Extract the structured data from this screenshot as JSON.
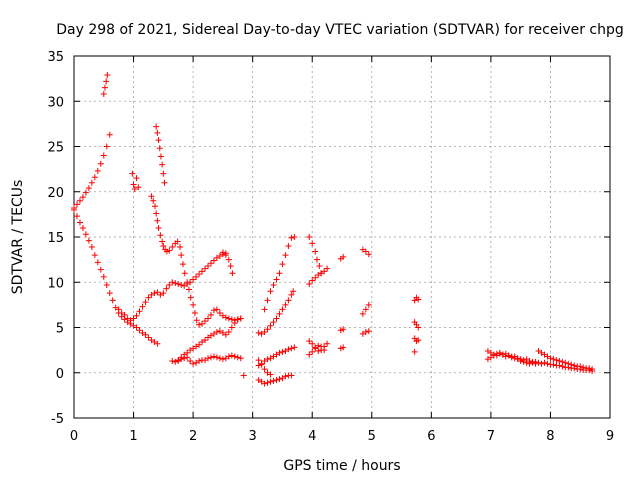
{
  "chart_data": {
    "type": "scatter",
    "title": "Day 298 of 2021, Sidereal Day-to-day VTEC variation (SDTVAR) for receiver chpg",
    "xlabel": "GPS time / hours",
    "ylabel": "SDTVAR / TECUs",
    "xlim": [
      0,
      9
    ],
    "ylim": [
      -5,
      35
    ],
    "xticks": [
      0,
      1,
      2,
      3,
      4,
      5,
      6,
      7,
      8,
      9
    ],
    "yticks": [
      -5,
      0,
      5,
      10,
      15,
      20,
      25,
      30,
      35
    ],
    "grid": true,
    "marker": "+",
    "color": "#ff0000",
    "segments": [
      [
        [
          0.0,
          18.2
        ],
        [
          0.05,
          18.6
        ],
        [
          0.1,
          19.0
        ],
        [
          0.15,
          19.4
        ],
        [
          0.2,
          19.9
        ],
        [
          0.25,
          20.4
        ],
        [
          0.3,
          21.0
        ],
        [
          0.35,
          21.6
        ],
        [
          0.4,
          22.3
        ],
        [
          0.45,
          23.1
        ],
        [
          0.5,
          24.0
        ],
        [
          0.55,
          25.0
        ],
        [
          0.6,
          26.3
        ]
      ],
      [
        [
          0.0,
          18.0
        ],
        [
          0.05,
          17.3
        ],
        [
          0.1,
          16.6
        ],
        [
          0.15,
          16.0
        ],
        [
          0.2,
          15.3
        ],
        [
          0.25,
          14.6
        ],
        [
          0.3,
          13.9
        ],
        [
          0.35,
          13.0
        ],
        [
          0.4,
          12.2
        ],
        [
          0.45,
          11.4
        ],
        [
          0.5,
          10.6
        ],
        [
          0.55,
          9.7
        ],
        [
          0.6,
          8.8
        ],
        [
          0.65,
          8.0
        ],
        [
          0.7,
          7.2
        ],
        [
          0.75,
          6.6
        ],
        [
          0.8,
          6.2
        ],
        [
          0.85,
          5.9
        ],
        [
          0.9,
          5.6
        ],
        [
          0.95,
          5.4
        ],
        [
          1.0,
          5.2
        ],
        [
          1.05,
          5.0
        ],
        [
          1.1,
          4.7
        ],
        [
          1.15,
          4.4
        ],
        [
          1.2,
          4.2
        ],
        [
          1.25,
          3.9
        ],
        [
          1.3,
          3.6
        ],
        [
          1.35,
          3.4
        ],
        [
          1.4,
          3.2
        ]
      ],
      [
        [
          0.5,
          30.8
        ],
        [
          0.52,
          31.5
        ],
        [
          0.54,
          32.2
        ],
        [
          0.56,
          32.9
        ]
      ],
      [
        [
          0.98,
          22.0
        ],
        [
          1.0,
          20.8
        ],
        [
          1.02,
          20.3
        ],
        [
          1.05,
          21.5
        ],
        [
          1.08,
          20.5
        ]
      ],
      [
        [
          0.75,
          7.0
        ],
        [
          0.8,
          6.6
        ],
        [
          0.85,
          6.4
        ],
        [
          0.9,
          6.0
        ],
        [
          0.95,
          5.8
        ],
        [
          1.0,
          6.0
        ],
        [
          1.05,
          6.3
        ],
        [
          1.1,
          6.8
        ],
        [
          1.15,
          7.3
        ],
        [
          1.2,
          7.8
        ],
        [
          1.25,
          8.3
        ],
        [
          1.3,
          8.6
        ],
        [
          1.35,
          8.8
        ],
        [
          1.4,
          8.9
        ],
        [
          1.45,
          8.6
        ],
        [
          1.5,
          8.8
        ],
        [
          1.55,
          9.3
        ],
        [
          1.6,
          9.7
        ],
        [
          1.65,
          10.0
        ],
        [
          1.7,
          9.9
        ],
        [
          1.75,
          9.8
        ],
        [
          1.8,
          9.7
        ],
        [
          1.85,
          9.6
        ],
        [
          1.9,
          9.8
        ],
        [
          1.95,
          10.0
        ],
        [
          2.0,
          10.3
        ],
        [
          2.05,
          10.6
        ],
        [
          2.1,
          10.9
        ],
        [
          2.15,
          11.2
        ],
        [
          2.2,
          11.5
        ],
        [
          2.25,
          11.8
        ],
        [
          2.3,
          12.1
        ],
        [
          2.35,
          12.4
        ],
        [
          2.4,
          12.7
        ],
        [
          2.45,
          12.9
        ],
        [
          2.5,
          13.1
        ],
        [
          2.55,
          13.2
        ]
      ],
      [
        [
          1.38,
          27.2
        ],
        [
          1.4,
          26.5
        ],
        [
          1.42,
          25.7
        ],
        [
          1.44,
          24.8
        ],
        [
          1.46,
          23.9
        ],
        [
          1.48,
          23.0
        ],
        [
          1.5,
          22.0
        ],
        [
          1.52,
          21.0
        ]
      ],
      [
        [
          1.3,
          19.5
        ],
        [
          1.33,
          19.0
        ],
        [
          1.36,
          18.4
        ],
        [
          1.38,
          17.6
        ],
        [
          1.4,
          16.8
        ],
        [
          1.42,
          16.0
        ],
        [
          1.45,
          15.2
        ],
        [
          1.48,
          14.5
        ],
        [
          1.5,
          14.0
        ],
        [
          1.53,
          13.6
        ],
        [
          1.56,
          13.4
        ],
        [
          1.6,
          13.5
        ],
        [
          1.65,
          13.9
        ],
        [
          1.7,
          14.3
        ],
        [
          1.74,
          14.5
        ],
        [
          1.78,
          13.9
        ],
        [
          1.8,
          13.0
        ],
        [
          1.83,
          12.0
        ],
        [
          1.86,
          11.0
        ],
        [
          1.9,
          10.0
        ],
        [
          1.93,
          9.2
        ],
        [
          1.96,
          8.3
        ],
        [
          2.0,
          7.5
        ],
        [
          2.03,
          6.6
        ],
        [
          2.06,
          5.8
        ],
        [
          2.1,
          5.3
        ],
        [
          2.15,
          5.4
        ],
        [
          2.2,
          5.7
        ],
        [
          2.25,
          6.0
        ],
        [
          2.3,
          6.4
        ],
        [
          2.35,
          6.9
        ],
        [
          2.4,
          7.0
        ],
        [
          2.45,
          6.6
        ],
        [
          2.5,
          6.3
        ],
        [
          2.55,
          6.1
        ],
        [
          2.6,
          6.0
        ],
        [
          2.65,
          5.9
        ],
        [
          2.7,
          5.8
        ],
        [
          2.75,
          5.9
        ],
        [
          2.8,
          6.0
        ]
      ],
      [
        [
          2.5,
          13.3
        ],
        [
          2.55,
          13.0
        ],
        [
          2.6,
          12.5
        ],
        [
          2.63,
          11.8
        ],
        [
          2.66,
          11.0
        ]
      ],
      [
        [
          1.65,
          1.3
        ],
        [
          1.7,
          1.2
        ],
        [
          1.75,
          1.3
        ],
        [
          1.8,
          1.5
        ],
        [
          1.85,
          1.6
        ],
        [
          1.9,
          1.7
        ],
        [
          1.95,
          1.3
        ],
        [
          2.0,
          1.0
        ],
        [
          2.05,
          1.1
        ],
        [
          2.1,
          1.3
        ],
        [
          2.15,
          1.4
        ],
        [
          2.2,
          1.4
        ],
        [
          2.25,
          1.6
        ],
        [
          2.3,
          1.7
        ],
        [
          2.35,
          1.8
        ],
        [
          2.4,
          1.7
        ],
        [
          2.45,
          1.6
        ],
        [
          2.5,
          1.5
        ],
        [
          2.55,
          1.6
        ],
        [
          2.6,
          1.8
        ],
        [
          2.65,
          1.9
        ],
        [
          2.7,
          1.8
        ],
        [
          2.75,
          1.7
        ],
        [
          2.8,
          1.6
        ]
      ],
      [
        [
          1.75,
          1.4
        ],
        [
          1.8,
          1.7
        ],
        [
          1.85,
          2.0
        ],
        [
          1.9,
          2.2
        ],
        [
          1.95,
          2.5
        ],
        [
          2.0,
          2.7
        ],
        [
          2.05,
          2.9
        ],
        [
          2.1,
          3.1
        ],
        [
          2.15,
          3.4
        ],
        [
          2.2,
          3.6
        ],
        [
          2.25,
          3.9
        ],
        [
          2.3,
          4.1
        ],
        [
          2.35,
          4.3
        ],
        [
          2.4,
          4.5
        ],
        [
          2.45,
          4.6
        ],
        [
          2.5,
          4.4
        ],
        [
          2.55,
          4.2
        ],
        [
          2.6,
          4.5
        ],
        [
          2.65,
          5.0
        ],
        [
          2.7,
          5.5
        ],
        [
          2.75,
          5.9
        ],
        [
          2.8,
          6.0
        ]
      ],
      [
        [
          2.85,
          -0.3
        ]
      ],
      [
        [
          3.1,
          4.4
        ],
        [
          3.15,
          4.3
        ],
        [
          3.2,
          4.5
        ],
        [
          3.25,
          4.8
        ],
        [
          3.3,
          5.2
        ],
        [
          3.35,
          5.6
        ],
        [
          3.4,
          6.0
        ],
        [
          3.45,
          6.5
        ],
        [
          3.5,
          7.0
        ],
        [
          3.55,
          7.5
        ],
        [
          3.6,
          8.0
        ],
        [
          3.65,
          8.6
        ],
        [
          3.68,
          9.0
        ]
      ],
      [
        [
          3.2,
          7.0
        ],
        [
          3.25,
          8.0
        ],
        [
          3.3,
          9.0
        ],
        [
          3.35,
          9.7
        ],
        [
          3.4,
          10.3
        ],
        [
          3.45,
          11.0
        ],
        [
          3.5,
          12.0
        ],
        [
          3.55,
          13.0
        ],
        [
          3.6,
          14.0
        ],
        [
          3.65,
          14.9
        ],
        [
          3.7,
          15.0
        ]
      ],
      [
        [
          3.1,
          -0.8
        ],
        [
          3.15,
          -1.0
        ],
        [
          3.2,
          -1.2
        ],
        [
          3.25,
          -1.1
        ],
        [
          3.3,
          -1.0
        ],
        [
          3.35,
          -0.9
        ],
        [
          3.4,
          -0.8
        ],
        [
          3.45,
          -0.7
        ],
        [
          3.5,
          -0.6
        ],
        [
          3.55,
          -0.4
        ],
        [
          3.6,
          -0.3
        ],
        [
          3.65,
          -0.3
        ]
      ],
      [
        [
          3.1,
          0.8
        ],
        [
          3.15,
          1.0
        ],
        [
          3.2,
          1.3
        ],
        [
          3.25,
          1.5
        ],
        [
          3.3,
          1.6
        ],
        [
          3.35,
          1.8
        ],
        [
          3.4,
          2.0
        ],
        [
          3.45,
          2.2
        ],
        [
          3.5,
          2.3
        ],
        [
          3.55,
          2.4
        ],
        [
          3.6,
          2.6
        ],
        [
          3.65,
          2.7
        ],
        [
          3.7,
          2.8
        ]
      ],
      [
        [
          3.1,
          1.4
        ],
        [
          3.15,
          0.9
        ],
        [
          3.2,
          0.4
        ],
        [
          3.25,
          0.0
        ],
        [
          3.3,
          -0.2
        ]
      ],
      [
        [
          3.95,
          15.0
        ],
        [
          4.0,
          14.3
        ],
        [
          4.05,
          13.4
        ],
        [
          4.08,
          12.5
        ],
        [
          4.12,
          11.8
        ],
        [
          4.15,
          11.0
        ]
      ],
      [
        [
          3.95,
          9.8
        ],
        [
          4.0,
          10.2
        ],
        [
          4.05,
          10.5
        ],
        [
          4.1,
          10.8
        ],
        [
          4.15,
          11.0
        ],
        [
          4.2,
          11.2
        ],
        [
          4.25,
          11.5
        ]
      ],
      [
        [
          3.95,
          3.5
        ],
        [
          4.0,
          3.2
        ],
        [
          4.05,
          2.8
        ],
        [
          4.1,
          2.4
        ],
        [
          4.15,
          2.5
        ],
        [
          4.2,
          2.9
        ],
        [
          4.25,
          3.2
        ]
      ],
      [
        [
          3.95,
          2.0
        ],
        [
          4.0,
          2.3
        ],
        [
          4.05,
          2.7
        ],
        [
          4.1,
          3.0
        ],
        [
          4.15,
          2.9
        ],
        [
          4.2,
          2.5
        ]
      ],
      [
        [
          4.48,
          12.6
        ],
        [
          4.52,
          12.8
        ]
      ],
      [
        [
          4.48,
          4.7
        ],
        [
          4.52,
          4.8
        ]
      ],
      [
        [
          4.48,
          2.7
        ],
        [
          4.52,
          2.8
        ]
      ],
      [
        [
          4.85,
          13.6
        ],
        [
          4.9,
          13.4
        ],
        [
          4.95,
          13.1
        ]
      ],
      [
        [
          4.85,
          6.5
        ],
        [
          4.9,
          7.0
        ],
        [
          4.95,
          7.5
        ]
      ],
      [
        [
          4.85,
          4.3
        ],
        [
          4.9,
          4.5
        ],
        [
          4.95,
          4.6
        ]
      ],
      [
        [
          5.72,
          8.0
        ],
        [
          5.75,
          8.3
        ],
        [
          5.78,
          8.1
        ]
      ],
      [
        [
          5.72,
          5.6
        ],
        [
          5.75,
          5.3
        ],
        [
          5.78,
          5.0
        ]
      ],
      [
        [
          5.72,
          3.8
        ],
        [
          5.75,
          3.5
        ],
        [
          5.78,
          3.6
        ]
      ],
      [
        [
          5.72,
          2.3
        ]
      ],
      [
        [
          6.95,
          2.4
        ],
        [
          7.0,
          2.2
        ],
        [
          7.05,
          2.0
        ],
        [
          7.1,
          1.9
        ],
        [
          7.15,
          2.1
        ],
        [
          7.2,
          2.0
        ],
        [
          7.25,
          1.8
        ],
        [
          7.3,
          1.9
        ],
        [
          7.35,
          1.7
        ],
        [
          7.4,
          1.8
        ],
        [
          7.45,
          1.6
        ],
        [
          7.5,
          1.5
        ],
        [
          7.55,
          1.4
        ],
        [
          7.6,
          1.5
        ],
        [
          7.65,
          1.3
        ],
        [
          7.7,
          1.2
        ],
        [
          7.75,
          1.2
        ],
        [
          7.8,
          1.1
        ],
        [
          7.85,
          1.0
        ],
        [
          7.9,
          1.1
        ],
        [
          7.95,
          1.0
        ],
        [
          8.0,
          0.9
        ],
        [
          8.05,
          0.9
        ],
        [
          8.1,
          0.8
        ],
        [
          8.15,
          0.8
        ],
        [
          8.2,
          0.7
        ],
        [
          8.25,
          0.6
        ],
        [
          8.3,
          0.6
        ],
        [
          8.35,
          0.5
        ],
        [
          8.4,
          0.5
        ],
        [
          8.45,
          0.4
        ],
        [
          8.5,
          0.4
        ],
        [
          8.55,
          0.3
        ],
        [
          8.6,
          0.3
        ],
        [
          8.65,
          0.3
        ],
        [
          8.7,
          0.2
        ]
      ],
      [
        [
          6.95,
          1.5
        ],
        [
          7.0,
          1.7
        ],
        [
          7.05,
          1.9
        ],
        [
          7.1,
          2.1
        ],
        [
          7.15,
          2.2
        ],
        [
          7.2,
          2.0
        ],
        [
          7.25,
          2.1
        ],
        [
          7.3,
          1.9
        ],
        [
          7.35,
          1.8
        ],
        [
          7.4,
          1.6
        ],
        [
          7.45,
          1.5
        ],
        [
          7.5,
          1.3
        ],
        [
          7.55,
          1.2
        ],
        [
          7.6,
          1.1
        ],
        [
          7.65,
          1.0
        ],
        [
          7.7,
          1.1
        ],
        [
          7.75,
          1.0
        ]
      ],
      [
        [
          7.8,
          2.4
        ],
        [
          7.85,
          2.2
        ],
        [
          7.9,
          2.0
        ],
        [
          7.95,
          1.8
        ],
        [
          8.0,
          1.6
        ],
        [
          8.05,
          1.5
        ],
        [
          8.1,
          1.4
        ],
        [
          8.15,
          1.3
        ],
        [
          8.2,
          1.2
        ],
        [
          8.25,
          1.1
        ],
        [
          8.3,
          1.0
        ],
        [
          8.35,
          0.9
        ],
        [
          8.4,
          0.8
        ],
        [
          8.45,
          0.7
        ],
        [
          8.5,
          0.7
        ],
        [
          8.55,
          0.6
        ],
        [
          8.6,
          0.5
        ],
        [
          8.65,
          0.5
        ],
        [
          8.7,
          0.4
        ]
      ]
    ]
  }
}
